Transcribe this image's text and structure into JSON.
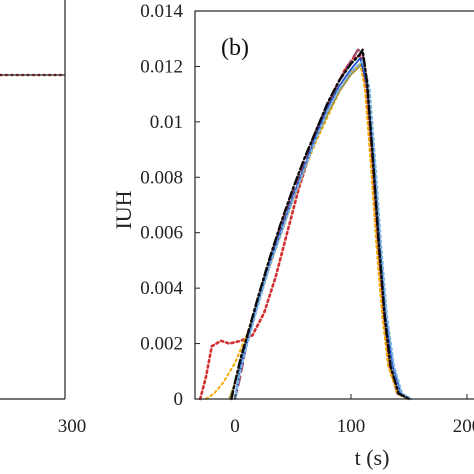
{
  "chart_data": [
    {
      "panel": "left (partially visible)",
      "type": "line",
      "x_tick_labels": [
        "300"
      ],
      "series": [
        {
          "style": "dotted",
          "color": "#c62828",
          "points": [
            [
              230,
              1
            ],
            [
              300,
              1
            ]
          ]
        },
        {
          "style": "solid",
          "color": "#1a1a1a",
          "points": [
            [
              230,
              1
            ],
            [
              300,
              1
            ]
          ]
        }
      ]
    },
    {
      "panel": "right",
      "type": "line",
      "panel_label": "(b)",
      "xlabel": "t (s)",
      "ylabel": "IUH",
      "xlim": [
        -30,
        200
      ],
      "ylim": [
        0,
        0.014
      ],
      "x_ticks": [
        0,
        100,
        200
      ],
      "x_tick_labels": [
        "0",
        "100",
        "200"
      ],
      "y_ticks": [
        0,
        0.002,
        0.004,
        0.006,
        0.008,
        0.01,
        0.012,
        0.014
      ],
      "y_tick_labels": [
        "0",
        "0.002",
        "0.004",
        "0.006",
        "0.008",
        "0.01",
        "0.012",
        "0.014"
      ],
      "grid": false,
      "series": [
        {
          "style": "dotted",
          "color": "#d32f2f",
          "width": 2.6,
          "points": [
            [
              -30,
              0
            ],
            [
              -25,
              0.0008
            ],
            [
              -20,
              0.0019
            ],
            [
              -12,
              0.0021
            ],
            [
              -5,
              0.002
            ],
            [
              5,
              0.0021
            ],
            [
              15,
              0.0023
            ],
            [
              25,
              0.0031
            ],
            [
              35,
              0.0044
            ],
            [
              45,
              0.006
            ],
            [
              55,
              0.0076
            ],
            [
              65,
              0.0089
            ],
            [
              75,
              0.0101
            ],
            [
              85,
              0.0111
            ],
            [
              95,
              0.0119
            ],
            [
              102,
              0.0123
            ],
            [
              108,
              0.0124
            ],
            [
              113,
              0.0112
            ],
            [
              118,
              0.0085
            ],
            [
              123,
              0.0055
            ],
            [
              128,
              0.003
            ],
            [
              133,
              0.0012
            ],
            [
              140,
              0.0002
            ],
            [
              150,
              0
            ]
          ]
        },
        {
          "style": "dashed",
          "color": "#9e4b6e",
          "width": 2.4,
          "points": [
            [
              0,
              0
            ],
            [
              5,
              0.0009
            ],
            [
              10,
              0.002
            ],
            [
              20,
              0.0036
            ],
            [
              30,
              0.005
            ],
            [
              40,
              0.0063
            ],
            [
              50,
              0.0075
            ],
            [
              60,
              0.0086
            ],
            [
              70,
              0.0097
            ],
            [
              80,
              0.0106
            ],
            [
              90,
              0.0115
            ],
            [
              100,
              0.0122
            ],
            [
              106,
              0.0126
            ],
            [
              110,
              0.0125
            ],
            [
              114,
              0.0112
            ],
            [
              119,
              0.0085
            ],
            [
              124,
              0.0055
            ],
            [
              129,
              0.003
            ],
            [
              134,
              0.0012
            ],
            [
              140,
              0.0002
            ],
            [
              150,
              0
            ]
          ]
        },
        {
          "style": "dotted",
          "color": "#f2a900",
          "width": 2.0,
          "points": [
            [
              -25,
              0
            ],
            [
              -18,
              0.0002
            ],
            [
              -10,
              0.0006
            ],
            [
              0,
              0.0013
            ],
            [
              10,
              0.0023
            ],
            [
              20,
              0.0035
            ],
            [
              30,
              0.0048
            ],
            [
              40,
              0.006
            ],
            [
              50,
              0.0072
            ],
            [
              60,
              0.0083
            ],
            [
              70,
              0.0093
            ],
            [
              80,
              0.0102
            ],
            [
              90,
              0.0111
            ],
            [
              100,
              0.0118
            ],
            [
              108,
              0.0121
            ],
            [
              112,
              0.0112
            ],
            [
              117,
              0.0085
            ],
            [
              122,
              0.0055
            ],
            [
              127,
              0.003
            ],
            [
              132,
              0.0012
            ],
            [
              140,
              0.0002
            ],
            [
              150,
              0
            ]
          ]
        },
        {
          "style": "solid",
          "color": "#9c8a2b",
          "width": 1.6,
          "points": [
            [
              -5,
              0
            ],
            [
              0,
              0.0006
            ],
            [
              5,
              0.0013
            ],
            [
              10,
              0.0022
            ],
            [
              20,
              0.0036
            ],
            [
              30,
              0.0049
            ],
            [
              40,
              0.0061
            ],
            [
              50,
              0.0073
            ],
            [
              60,
              0.0084
            ],
            [
              70,
              0.0094
            ],
            [
              80,
              0.0103
            ],
            [
              90,
              0.0111
            ],
            [
              100,
              0.0117
            ],
            [
              110,
              0.0121
            ],
            [
              114,
              0.0112
            ],
            [
              119,
              0.0085
            ],
            [
              124,
              0.0055
            ],
            [
              129,
              0.003
            ],
            [
              134,
              0.0012
            ],
            [
              141,
              0.0002
            ],
            [
              150,
              0
            ]
          ]
        },
        {
          "style": "solid",
          "color": "#1f4fd1",
          "width": 1.8,
          "points": [
            [
              0,
              0
            ],
            [
              2,
              0.0005
            ],
            [
              5,
              0.0012
            ],
            [
              10,
              0.002
            ],
            [
              20,
              0.0035
            ],
            [
              30,
              0.0049
            ],
            [
              40,
              0.0061
            ],
            [
              50,
              0.0073
            ],
            [
              60,
              0.0084
            ],
            [
              70,
              0.0095
            ],
            [
              80,
              0.0105
            ],
            [
              90,
              0.0113
            ],
            [
              100,
              0.0119
            ],
            [
              108,
              0.0123
            ],
            [
              114,
              0.0113
            ],
            [
              120,
              0.0085
            ],
            [
              125,
              0.0055
            ],
            [
              130,
              0.003
            ],
            [
              136,
              0.0012
            ],
            [
              143,
              0.0002
            ],
            [
              152,
              0
            ]
          ]
        },
        {
          "style": "dotted",
          "color": "#7cb6e0",
          "width": 2.2,
          "points": [
            [
              0,
              0
            ],
            [
              4,
              0.0009
            ],
            [
              10,
              0.0019
            ],
            [
              20,
              0.0034
            ],
            [
              30,
              0.0048
            ],
            [
              40,
              0.006
            ],
            [
              50,
              0.0072
            ],
            [
              60,
              0.0083
            ],
            [
              70,
              0.0094
            ],
            [
              80,
              0.0104
            ],
            [
              90,
              0.0112
            ],
            [
              100,
              0.0118
            ],
            [
              110,
              0.0122
            ],
            [
              116,
              0.0112
            ],
            [
              121,
              0.0085
            ],
            [
              126,
              0.0055
            ],
            [
              131,
              0.003
            ],
            [
              137,
              0.0012
            ],
            [
              144,
              0.0002
            ],
            [
              152,
              0
            ]
          ]
        },
        {
          "style": "dashdot",
          "color": "#0b0b0b",
          "width": 2.4,
          "points": [
            [
              -3,
              0
            ],
            [
              0,
              0.0006
            ],
            [
              5,
              0.0015
            ],
            [
              10,
              0.0022
            ],
            [
              20,
              0.0037
            ],
            [
              30,
              0.0051
            ],
            [
              40,
              0.0064
            ],
            [
              50,
              0.0076
            ],
            [
              60,
              0.0087
            ],
            [
              70,
              0.0097
            ],
            [
              80,
              0.0107
            ],
            [
              90,
              0.0115
            ],
            [
              100,
              0.0121
            ],
            [
              107,
              0.0124
            ],
            [
              110,
              0.0126
            ],
            [
              114,
              0.0114
            ],
            [
              119,
              0.0086
            ],
            [
              124,
              0.0056
            ],
            [
              129,
              0.003
            ],
            [
              134,
              0.0012
            ],
            [
              141,
              0.0002
            ],
            [
              150,
              0
            ]
          ]
        }
      ]
    }
  ]
}
